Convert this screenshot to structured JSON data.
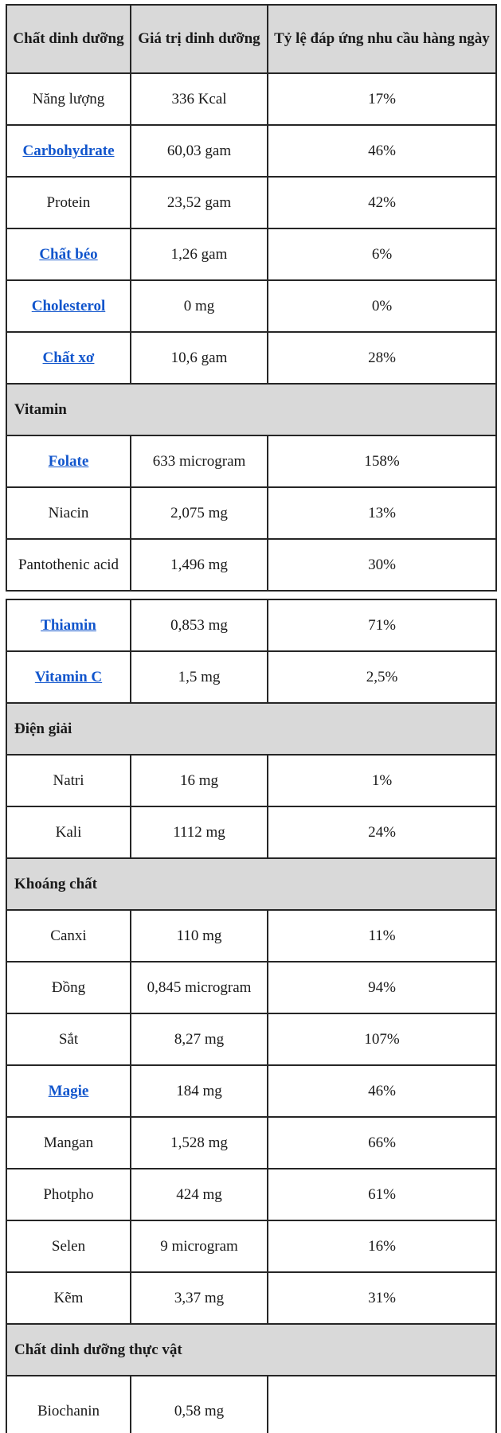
{
  "colors": {
    "header_background": "#d9d9d9",
    "section_background": "#d9d9d9",
    "link_blue": "#1155cc",
    "border": "#262626",
    "text": "#1a1a1a"
  },
  "header": {
    "columns": [
      "Chất dinh dưỡng",
      "Giá trị dinh dưỡng",
      "Tỷ lệ đáp ứng nhu cầu hàng ngày"
    ]
  },
  "tables": {
    "first": {
      "rows": [
        {
          "name": "Năng lượng",
          "value": "336 Kcal",
          "percent": "17%",
          "link": false
        },
        {
          "name": "Carbohydrate",
          "value": "60,03 gam",
          "percent": "46%",
          "link": true
        },
        {
          "name": "Protein",
          "value": "23,52 gam",
          "percent": "42%",
          "link": false
        },
        {
          "name": "Chất béo",
          "value": "1,26 gam",
          "percent": "6%",
          "link": true
        },
        {
          "name": "Cholesterol",
          "value": "0 mg",
          "percent": "0%",
          "link": true
        },
        {
          "name": "Chất xơ",
          "value": "10,6 gam",
          "percent": "28%",
          "link": true
        },
        {
          "section": "Vitamin"
        },
        {
          "name": "Folate",
          "value": "633 microgram",
          "percent": "158%",
          "link": true
        },
        {
          "name": "Niacin",
          "value": "2,075 mg",
          "percent": "13%",
          "link": false
        },
        {
          "name": "Pantothenic acid",
          "value": "1,496 mg",
          "percent": "30%",
          "link": false
        }
      ]
    },
    "second": {
      "rows": [
        {
          "name": "Thiamin",
          "value": "0,853 mg",
          "percent": "71%",
          "link": true
        },
        {
          "name": "Vitamin C",
          "value": "1,5 mg",
          "percent": "2,5%",
          "link": true
        },
        {
          "section": "Điện giải"
        },
        {
          "name": "Natri",
          "value": "16 mg",
          "percent": "1%",
          "link": false
        },
        {
          "name": "Kali",
          "value": "1112 mg",
          "percent": "24%",
          "link": false
        },
        {
          "section": "Khoáng chất"
        },
        {
          "name": "Canxi",
          "value": "110 mg",
          "percent": "11%",
          "link": false
        },
        {
          "name": "Đồng",
          "value": "0,845 microgram",
          "percent": "94%",
          "link": false
        },
        {
          "name": "Sắt",
          "value": "8,27 mg",
          "percent": "107%",
          "link": false
        },
        {
          "name": "Magie",
          "value": "184 mg",
          "percent": "46%",
          "link": true
        },
        {
          "name": "Mangan",
          "value": "1,528 mg",
          "percent": "66%",
          "link": false
        },
        {
          "name": "Photpho",
          "value": "424 mg",
          "percent": "61%",
          "link": false
        },
        {
          "name": "Selen",
          "value": "9 microgram",
          "percent": "16%",
          "link": false
        },
        {
          "name": "Kẽm",
          "value": "3,37 mg",
          "percent": "31%",
          "link": false
        },
        {
          "section": "Chất dinh dưỡng thực vật"
        },
        {
          "name": "Biochanin",
          "value": "0,58 mg",
          "percent": "",
          "link": false
        }
      ]
    }
  }
}
